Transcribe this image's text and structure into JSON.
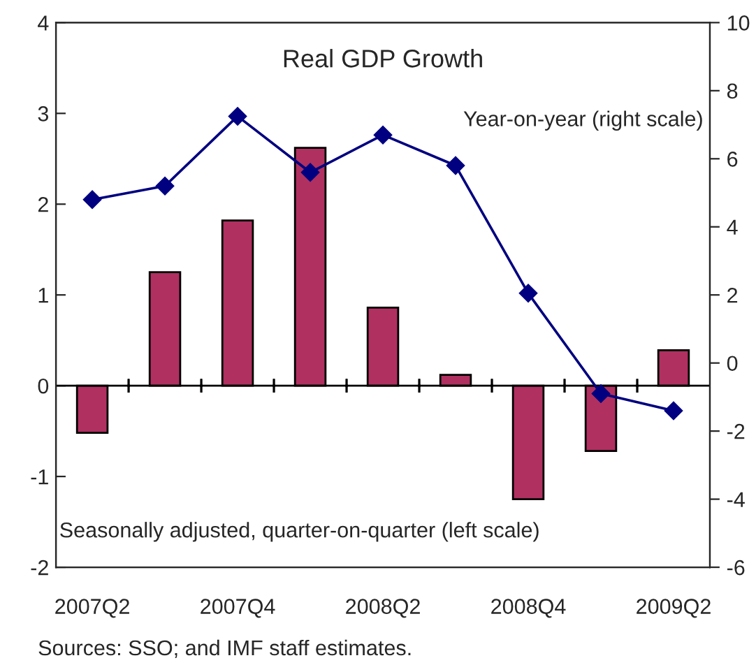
{
  "chart_data": {
    "type": "bar",
    "title": "Real GDP Growth",
    "categories": [
      "2007Q2",
      null,
      "2007Q4",
      null,
      "2008Q2",
      null,
      "2008Q4",
      null,
      "2009Q2"
    ],
    "series": [
      {
        "color": "#b03060",
        "values": [
          -0.52,
          1.25,
          1.82,
          2.62,
          0.86,
          0.12,
          -1.25,
          -0.72,
          0.39
        ]
      },
      {
        "type": "line",
        "axis": "y2",
        "color": "#000080",
        "marker": "diamond",
        "values": [
          4.8,
          5.2,
          7.25,
          5.6,
          6.7,
          5.8,
          2.05,
          -0.9,
          -1.4
        ]
      }
    ],
    "ylim": [
      -2,
      4
    ],
    "yticks": [
      -2,
      -1,
      0,
      1,
      2,
      3,
      4
    ],
    "y2lim": [
      -6,
      10
    ],
    "y2ticks": [
      -6,
      -4,
      -2,
      0,
      2,
      4,
      6,
      8,
      10
    ],
    "grid": false,
    "legend": false,
    "ref_lines": [
      {
        "axis": "y",
        "value": 0,
        "color": "#000000"
      }
    ],
    "annotations": [
      "Year-on-year (right scale)",
      "Seasonally adjusted, quarter-on-quarter (left scale)",
      "Sources: SSO; and IMF staff estimates."
    ]
  }
}
